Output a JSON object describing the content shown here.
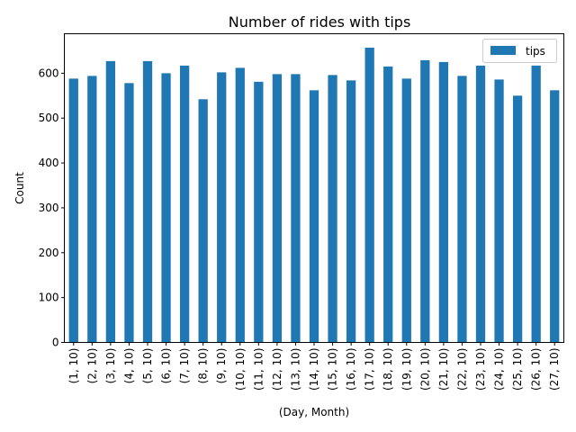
{
  "chart_data": {
    "type": "bar",
    "title": "Number of rides with tips",
    "xlabel": "(Day, Month)",
    "ylabel": "Count",
    "ylim": [
      0,
      688
    ],
    "yticks": [
      0,
      100,
      200,
      300,
      400,
      500,
      600
    ],
    "grid": false,
    "legend_position": "upper right",
    "bar_color": "#1f77b4",
    "categories": [
      "(1, 10)",
      "(2, 10)",
      "(3, 10)",
      "(4, 10)",
      "(5, 10)",
      "(6, 10)",
      "(7, 10)",
      "(8, 10)",
      "(9, 10)",
      "(10, 10)",
      "(11, 10)",
      "(12, 10)",
      "(13, 10)",
      "(14, 10)",
      "(15, 10)",
      "(16, 10)",
      "(17, 10)",
      "(18, 10)",
      "(19, 10)",
      "(20, 10)",
      "(21, 10)",
      "(22, 10)",
      "(23, 10)",
      "(24, 10)",
      "(25, 10)",
      "(26, 10)",
      "(27, 10)"
    ],
    "series": [
      {
        "name": "tips",
        "values": [
          588,
          594,
          627,
          578,
          627,
          600,
          617,
          542,
          602,
          612,
          581,
          598,
          598,
          562,
          596,
          584,
          657,
          615,
          588,
          629,
          625,
          594,
          617,
          586,
          550,
          617,
          562
        ]
      }
    ]
  }
}
